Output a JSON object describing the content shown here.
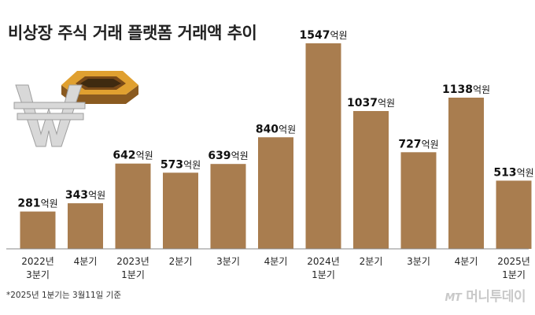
{
  "title": "비상장 주식 거래 플랫폼 거래액 추이",
  "footnote": "*2025년 1분기는 3월11일 기준",
  "source_logo": {
    "mark": "MT",
    "name": "머니투데이"
  },
  "colors": {
    "bar": "#a97d4f",
    "axis": "#888888",
    "text": "#111111"
  },
  "decoration": "won-coin-icon",
  "chart_data": {
    "type": "bar",
    "title": "비상장 주식 거래 플랫폼 거래액 추이",
    "unit": "억원",
    "categories": [
      [
        "2022년",
        "3분기"
      ],
      [
        "4분기"
      ],
      [
        "2023년",
        "1분기"
      ],
      [
        "2분기"
      ],
      [
        "3분기"
      ],
      [
        "4분기"
      ],
      [
        "2024년",
        "1분기"
      ],
      [
        "2분기"
      ],
      [
        "3분기"
      ],
      [
        "4분기"
      ],
      [
        "2025년",
        "1분기"
      ]
    ],
    "values": [
      281,
      343,
      642,
      573,
      639,
      840,
      1547,
      1037,
      727,
      1138,
      513
    ],
    "ylim": [
      0,
      1547
    ],
    "grid": false
  }
}
